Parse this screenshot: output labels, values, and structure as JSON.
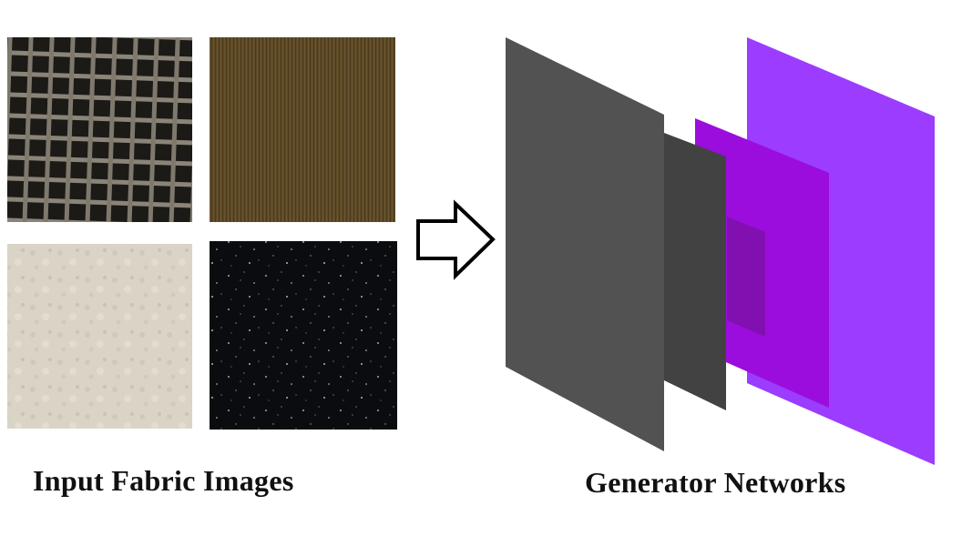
{
  "input_section": {
    "caption": "Input Fabric Images",
    "images": [
      {
        "name": "checkered-dark-fabric",
        "colors": {
          "base": "#1c1a16",
          "thread": "#8b8478"
        }
      },
      {
        "name": "brown-corduroy-fabric",
        "colors": {
          "base": "#5e4a26",
          "line": "#4a3a1c"
        }
      },
      {
        "name": "cream-felt-fabric",
        "colors": {
          "base": "#d9d4c6"
        }
      },
      {
        "name": "black-speckled-fabric",
        "colors": {
          "base": "#0b0c0f",
          "speck": "#cfd2d6"
        }
      }
    ]
  },
  "arrow": {
    "icon": "right-arrow-icon"
  },
  "generator_section": {
    "caption": "Generator Networks",
    "layer_colors": [
      "#525252",
      "#424242",
      "#9b0ddc",
      "#8210b0",
      "#9b3cff"
    ]
  }
}
